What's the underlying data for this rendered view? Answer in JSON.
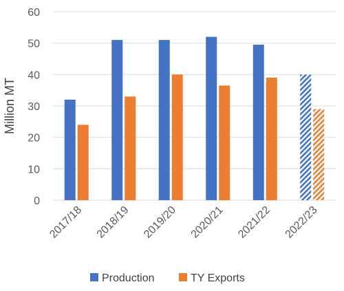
{
  "chart_data": {
    "type": "bar",
    "title": "",
    "xlabel": "",
    "ylabel": "Million MT",
    "ylim": [
      0,
      60
    ],
    "yticks": [
      0,
      10,
      20,
      30,
      40,
      50,
      60
    ],
    "grid": true,
    "legend_position": "bottom",
    "categories": [
      "2017/18",
      "2018/19",
      "2019/20",
      "2020/21",
      "2021/22",
      "2022/23"
    ],
    "series": [
      {
        "name": "Production",
        "color": "#4472C4",
        "values": [
          32,
          51,
          51,
          52,
          49.5,
          40
        ],
        "hatched_categories": [
          "2022/23"
        ]
      },
      {
        "name": "TY Exports",
        "color": "#ED7D31",
        "values": [
          24,
          33,
          40,
          36.5,
          39,
          29
        ],
        "hatched_categories": [
          "2022/23"
        ]
      }
    ]
  }
}
